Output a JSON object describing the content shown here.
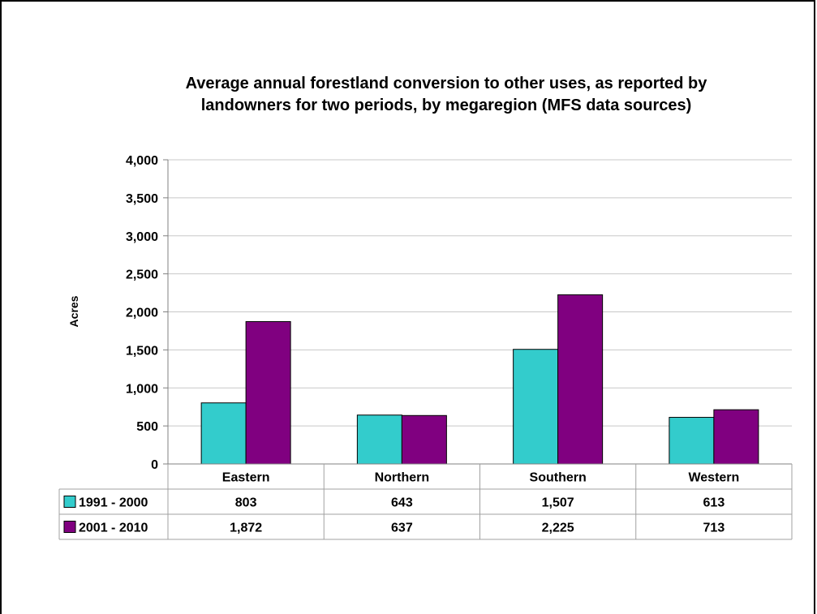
{
  "chart_data": {
    "type": "bar",
    "title_lines": [
      "Average annual forestland conversion to other uses, as reported by",
      "landowners for two periods, by megaregion (MFS data sources)"
    ],
    "ylabel": "Acres",
    "xlabel": "",
    "ylim": [
      0,
      4000
    ],
    "yticks": [
      0,
      500,
      1000,
      1500,
      2000,
      2500,
      3000,
      3500,
      4000
    ],
    "ytick_labels": [
      "0",
      "500",
      "1,000",
      "1,500",
      "2,000",
      "2,500",
      "3,000",
      "3,500",
      "4,000"
    ],
    "grid": true,
    "legend_placement": "data table",
    "categories": [
      "Eastern",
      "Northern",
      "Southern",
      "Western"
    ],
    "series": [
      {
        "name": "1991 - 2000",
        "color": "#33CCCC",
        "values": [
          803,
          643,
          1507,
          613
        ],
        "value_labels": [
          "803",
          "643",
          "1,507",
          "613"
        ]
      },
      {
        "name": "2001 - 2010",
        "color": "#800080",
        "values": [
          1872,
          637,
          2225,
          713
        ],
        "value_labels": [
          "1,872",
          "637",
          "2,225",
          "713"
        ]
      }
    ]
  }
}
